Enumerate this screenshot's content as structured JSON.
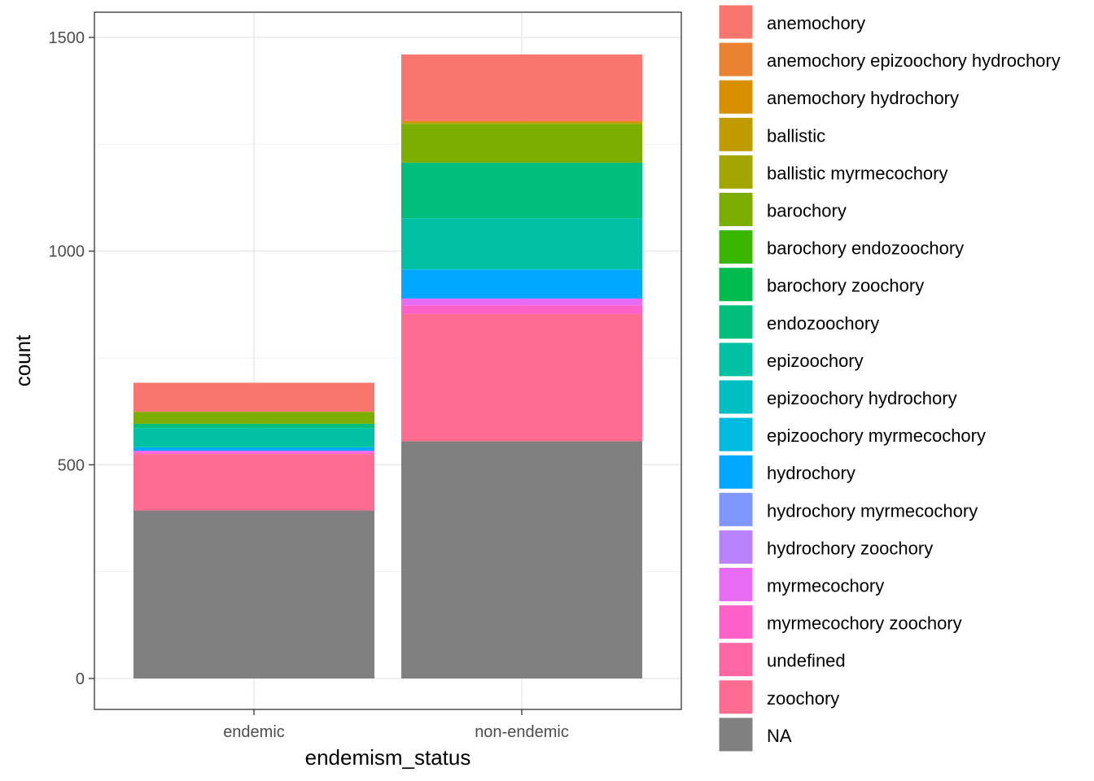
{
  "chart_data": {
    "type": "bar",
    "stacked": true,
    "title": "",
    "xlabel": "endemism_status",
    "ylabel": "count",
    "categories": [
      "endemic",
      "non-endemic"
    ],
    "ylim": [
      -150,
      1600
    ],
    "yticks": [
      0,
      500,
      1000,
      1500
    ],
    "grid": true,
    "legend_position": "right",
    "series": [
      {
        "name": "anemochory",
        "color": "#F8766D",
        "values": [
          68,
          155
        ]
      },
      {
        "name": "anemochory epizoochory hydrochory",
        "color": "#EA8331",
        "values": [
          0,
          2
        ]
      },
      {
        "name": "anemochory hydrochory",
        "color": "#D89000",
        "values": [
          0,
          2
        ]
      },
      {
        "name": "ballistic",
        "color": "#C09B00",
        "values": [
          0,
          2
        ]
      },
      {
        "name": "ballistic myrmecochory",
        "color": "#A3A500",
        "values": [
          0,
          2
        ]
      },
      {
        "name": "barochory",
        "color": "#7CAE00",
        "values": [
          28,
          90
        ]
      },
      {
        "name": "barochory endozoochory",
        "color": "#39B600",
        "values": [
          0,
          0
        ]
      },
      {
        "name": "barochory zoochory",
        "color": "#00BB4E",
        "values": [
          0,
          0
        ]
      },
      {
        "name": "endozoochory",
        "color": "#00BF7D",
        "values": [
          10,
          130
        ]
      },
      {
        "name": "epizoochory",
        "color": "#00C1A3",
        "values": [
          45,
          120
        ]
      },
      {
        "name": "epizoochory hydrochory",
        "color": "#00BFC4",
        "values": [
          0,
          0
        ]
      },
      {
        "name": "epizoochory myrmecochory",
        "color": "#00BAE0",
        "values": [
          0,
          0
        ]
      },
      {
        "name": "hydrochory",
        "color": "#00A9FF",
        "values": [
          8,
          68
        ]
      },
      {
        "name": "hydrochory myrmecochory",
        "color": "#7F96FF",
        "values": [
          0,
          0
        ]
      },
      {
        "name": "hydrochory zoochory",
        "color": "#B983FF",
        "values": [
          0,
          0
        ]
      },
      {
        "name": "myrmecochory",
        "color": "#E76BF3",
        "values": [
          4,
          16
        ]
      },
      {
        "name": "myrmecochory zoochory",
        "color": "#FF61C9",
        "values": [
          4,
          20
        ]
      },
      {
        "name": "undefined",
        "color": "#FF67A4",
        "values": [
          0,
          0
        ]
      },
      {
        "name": "zoochory",
        "color": "#FF6C91",
        "values": [
          132,
          298
        ]
      },
      {
        "name": "NA",
        "color": "#808080",
        "values": [
          393,
          555
        ]
      }
    ]
  }
}
